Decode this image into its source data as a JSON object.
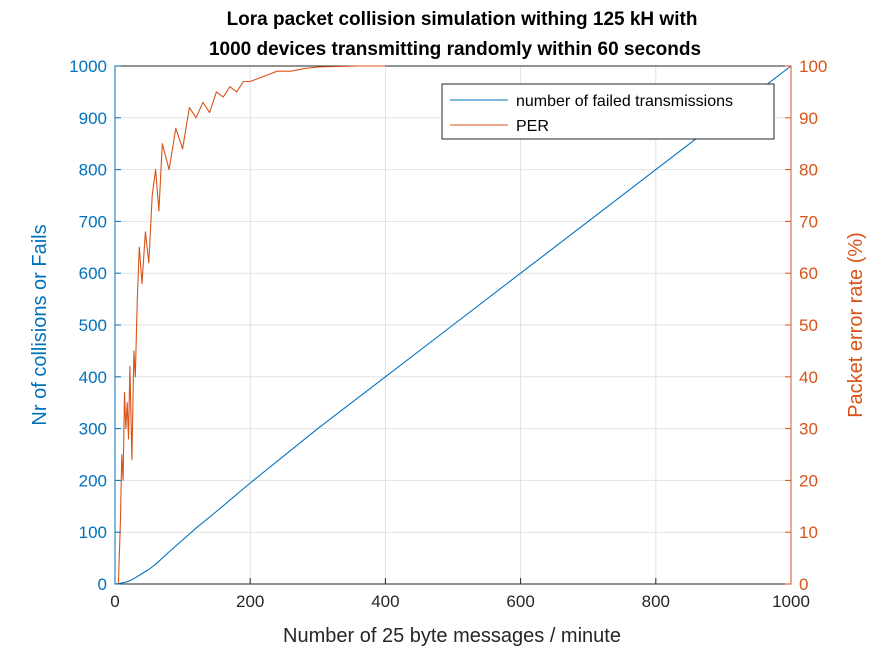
{
  "chart_data": {
    "type": "line",
    "title_lines": [
      "Lora packet collision simulation withing 125 kH with",
      "1000 devices transmitting randomly within 60 seconds"
    ],
    "xlabel": "Number of 25 byte  messages / minute",
    "ylabel_left": "Nr of collisions or Fails",
    "ylabel_right": "Packet error rate (%)",
    "xlim": [
      0,
      1000
    ],
    "ylim_left": [
      0,
      1000
    ],
    "ylim_right": [
      0,
      100
    ],
    "x_ticks": [
      "0",
      "200",
      "400",
      "600",
      "800",
      "1000"
    ],
    "y_left_ticks": [
      "0",
      "100",
      "200",
      "300",
      "400",
      "500",
      "600",
      "700",
      "800",
      "900",
      "1000"
    ],
    "y_right_ticks": [
      "0",
      "10",
      "20",
      "30",
      "40",
      "50",
      "60",
      "70",
      "80",
      "90",
      "100"
    ],
    "grid": true,
    "legend_position": "top-right",
    "colors": {
      "left_axis": "#0072BD",
      "right_axis": "#D95319",
      "grid": "#e2e2e2"
    },
    "series": [
      {
        "name": "number of failed transmissions",
        "axis": "left",
        "color": "#0072BD",
        "x": [
          0,
          10,
          20,
          30,
          40,
          50,
          60,
          80,
          100,
          120,
          150,
          200,
          300,
          400,
          500,
          600,
          700,
          800,
          900,
          1000
        ],
        "y": [
          0,
          2,
          5,
          12,
          20,
          28,
          38,
          62,
          85,
          108,
          140,
          195,
          300,
          400,
          500,
          600,
          700,
          800,
          900,
          1000
        ]
      },
      {
        "name": "PER",
        "axis": "right",
        "color": "#D95319",
        "x": [
          5,
          8,
          10,
          12,
          14,
          16,
          18,
          20,
          22,
          25,
          28,
          30,
          33,
          36,
          40,
          45,
          50,
          55,
          60,
          65,
          70,
          80,
          90,
          100,
          110,
          120,
          130,
          140,
          150,
          160,
          170,
          180,
          190,
          200,
          220,
          240,
          260,
          280,
          300,
          330,
          360,
          400
        ],
        "y": [
          0,
          12,
          25,
          20,
          37,
          30,
          35,
          28,
          42,
          24,
          45,
          40,
          55,
          65,
          58,
          68,
          62,
          75,
          80,
          72,
          85,
          80,
          88,
          84,
          92,
          90,
          93,
          91,
          95,
          94,
          96,
          95,
          97,
          97,
          98,
          99,
          99,
          99.5,
          99.8,
          99.9,
          100,
          100
        ]
      }
    ]
  }
}
